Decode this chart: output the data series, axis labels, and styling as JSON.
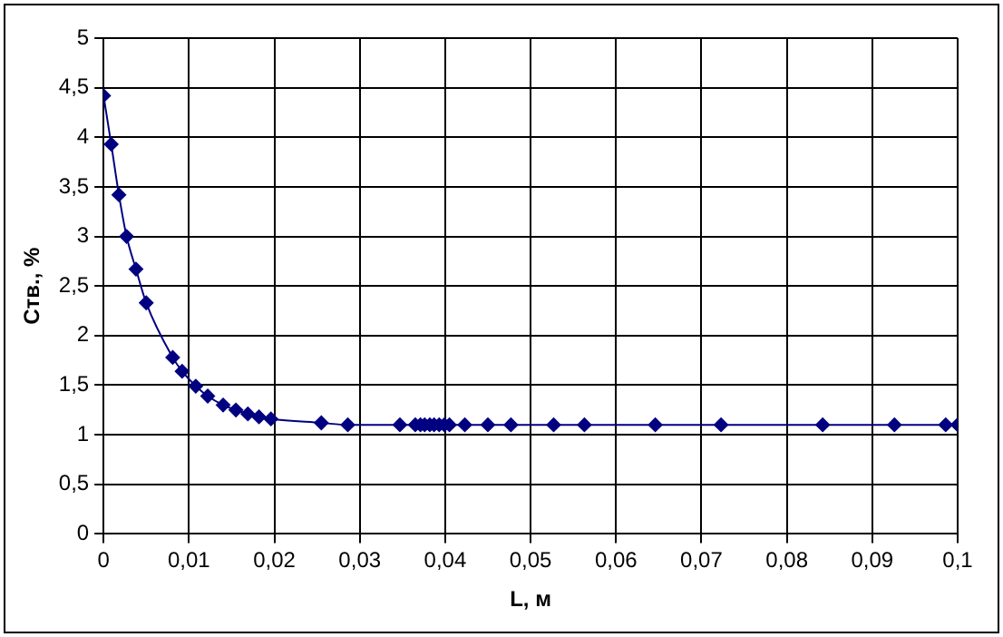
{
  "chart_data": {
    "type": "line",
    "xlabel": "L, м",
    "ylabel": "Cтв., %",
    "marker": "diamond",
    "grid": true,
    "legend": false,
    "x": [
      0,
      0.0009,
      0.0018,
      0.0027,
      0.0038,
      0.005,
      0.0081,
      0.0092,
      0.0108,
      0.0122,
      0.014,
      0.0155,
      0.0169,
      0.0182,
      0.0196,
      0.0255,
      0.0286,
      0.0347,
      0.0365,
      0.0371,
      0.0376,
      0.0382,
      0.0387,
      0.0393,
      0.0399,
      0.0405,
      0.0423,
      0.045,
      0.0477,
      0.0527,
      0.0563,
      0.0646,
      0.0723,
      0.0842,
      0.0926,
      0.0986,
      0.1
    ],
    "series": [
      {
        "color": "#000080",
        "values": [
          4.42,
          3.93,
          3.42,
          3.0,
          2.67,
          2.33,
          1.78,
          1.64,
          1.49,
          1.39,
          1.3,
          1.25,
          1.21,
          1.18,
          1.16,
          1.12,
          1.1,
          1.1,
          1.1,
          1.1,
          1.1,
          1.1,
          1.1,
          1.1,
          1.1,
          1.1,
          1.1,
          1.1,
          1.1,
          1.1,
          1.1,
          1.1,
          1.1,
          1.1,
          1.1,
          1.1,
          1.1
        ]
      }
    ],
    "xlim": [
      0,
      0.1
    ],
    "xticks": [
      {
        "value": 0,
        "label": "0"
      },
      {
        "value": 0.01,
        "label": "0,01"
      },
      {
        "value": 0.02,
        "label": "0,02"
      },
      {
        "value": 0.03,
        "label": "0,03"
      },
      {
        "value": 0.04,
        "label": "0,04"
      },
      {
        "value": 0.05,
        "label": "0,05"
      },
      {
        "value": 0.06,
        "label": "0,06"
      },
      {
        "value": 0.07,
        "label": "0,07"
      },
      {
        "value": 0.08,
        "label": "0,08"
      },
      {
        "value": 0.09,
        "label": "0,09"
      },
      {
        "value": 0.1,
        "label": "0,1"
      }
    ],
    "ylim": [
      0,
      5
    ],
    "yticks": [
      0,
      {
        "value": 0.5,
        "label": "0,5"
      },
      1,
      {
        "value": 1.5,
        "label": "1,5"
      },
      2,
      {
        "value": 2.5,
        "label": "2,5"
      },
      3,
      {
        "value": 3.5,
        "label": "3,5"
      },
      4,
      {
        "value": 4.5,
        "label": "4,5"
      },
      5
    ]
  }
}
